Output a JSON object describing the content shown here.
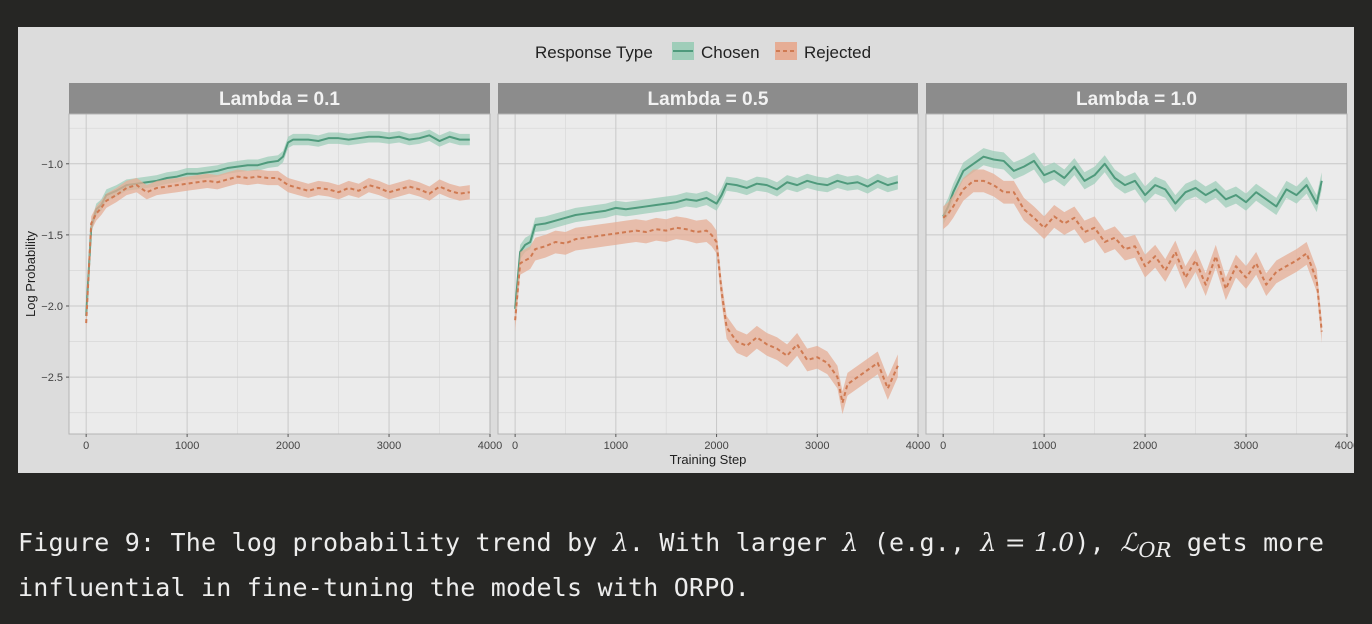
{
  "legend": {
    "title": "Response Type",
    "items": [
      {
        "label": "Chosen",
        "color": "#4f9a7c",
        "fill": "#9fcdb9",
        "dash": "solid"
      },
      {
        "label": "Rejected",
        "color": "#cf7a52",
        "fill": "#e6ad95",
        "dash": "dashed"
      }
    ]
  },
  "caption": {
    "prefix": "Figure 9:",
    "part1": "The log probability trend by",
    "lambda": "λ",
    "part2": ". With larger",
    "part3": "(e.g.,",
    "lambda_eq": "λ = 1.0",
    "part4": "),",
    "loss": "ℒ",
    "loss_sub": "OR",
    "part5": "gets more influential in fine-tuning the models with ORPO."
  },
  "chart_data": {
    "type": "line",
    "xlabel": "Training Step",
    "ylabel": "Log Probability",
    "xlim": [
      -170,
      4000
    ],
    "ylim": [
      -2.9,
      -0.65
    ],
    "xticks": [
      0,
      1000,
      2000,
      3000,
      4000
    ],
    "xtick_labels": [
      "0",
      "1000",
      "2000",
      "3000",
      "4000"
    ],
    "yticks": [
      -1.0,
      -1.5,
      -2.0,
      -2.5
    ],
    "ytick_labels": [
      "−1.0",
      "−1.5",
      "−2.0",
      "−2.5"
    ],
    "grid": true,
    "legend_position": "top",
    "panels": [
      {
        "title": "Lambda = 0.1",
        "series": [
          {
            "name": "Chosen",
            "band": 0.04,
            "x": [
              0,
              50,
              100,
              150,
              200,
              300,
              400,
              500,
              600,
              700,
              800,
              900,
              1000,
              1100,
              1200,
              1300,
              1400,
              1500,
              1600,
              1700,
              1800,
              1900,
              1950,
              2000,
              2050,
              2100,
              2200,
              2300,
              2400,
              2500,
              2600,
              2700,
              2800,
              2900,
              3000,
              3100,
              3200,
              3300,
              3400,
              3500,
              3600,
              3700,
              3800
            ],
            "y": [
              -2.07,
              -1.45,
              -1.32,
              -1.29,
              -1.22,
              -1.19,
              -1.15,
              -1.14,
              -1.13,
              -1.12,
              -1.1,
              -1.09,
              -1.07,
              -1.07,
              -1.06,
              -1.05,
              -1.03,
              -1.02,
              -1.01,
              -1.01,
              -0.99,
              -0.98,
              -0.95,
              -0.85,
              -0.83,
              -0.83,
              -0.83,
              -0.84,
              -0.82,
              -0.82,
              -0.83,
              -0.82,
              -0.81,
              -0.81,
              -0.82,
              -0.81,
              -0.83,
              -0.82,
              -0.8,
              -0.84,
              -0.81,
              -0.83,
              -0.83
            ]
          },
          {
            "name": "Rejected",
            "band": 0.05,
            "x": [
              0,
              50,
              100,
              150,
              200,
              300,
              400,
              500,
              600,
              700,
              800,
              900,
              1000,
              1100,
              1200,
              1300,
              1400,
              1500,
              1600,
              1700,
              1800,
              1900,
              2000,
              2100,
              2200,
              2300,
              2400,
              2500,
              2600,
              2700,
              2800,
              2900,
              3000,
              3100,
              3200,
              3300,
              3400,
              3500,
              3600,
              3700,
              3800
            ],
            "y": [
              -2.12,
              -1.42,
              -1.35,
              -1.31,
              -1.26,
              -1.22,
              -1.17,
              -1.15,
              -1.2,
              -1.17,
              -1.16,
              -1.15,
              -1.14,
              -1.13,
              -1.12,
              -1.13,
              -1.11,
              -1.09,
              -1.1,
              -1.09,
              -1.1,
              -1.1,
              -1.15,
              -1.17,
              -1.19,
              -1.17,
              -1.18,
              -1.2,
              -1.17,
              -1.19,
              -1.15,
              -1.17,
              -1.2,
              -1.18,
              -1.16,
              -1.18,
              -1.21,
              -1.16,
              -1.19,
              -1.21,
              -1.2
            ]
          }
        ]
      },
      {
        "title": "Lambda = 0.5",
        "series": [
          {
            "name": "Chosen",
            "band": 0.05,
            "x": [
              0,
              50,
              100,
              150,
              200,
              300,
              400,
              500,
              600,
              700,
              800,
              900,
              1000,
              1100,
              1200,
              1300,
              1400,
              1500,
              1600,
              1700,
              1800,
              1900,
              2000,
              2050,
              2100,
              2200,
              2300,
              2400,
              2500,
              2600,
              2700,
              2800,
              2900,
              3000,
              3100,
              3200,
              3300,
              3400,
              3500,
              3600,
              3700,
              3800
            ],
            "y": [
              -2.02,
              -1.62,
              -1.57,
              -1.55,
              -1.43,
              -1.42,
              -1.4,
              -1.38,
              -1.36,
              -1.35,
              -1.34,
              -1.33,
              -1.31,
              -1.32,
              -1.31,
              -1.3,
              -1.29,
              -1.28,
              -1.27,
              -1.25,
              -1.26,
              -1.24,
              -1.28,
              -1.22,
              -1.14,
              -1.15,
              -1.17,
              -1.14,
              -1.15,
              -1.18,
              -1.13,
              -1.15,
              -1.12,
              -1.14,
              -1.15,
              -1.12,
              -1.14,
              -1.13,
              -1.16,
              -1.12,
              -1.15,
              -1.13
            ]
          },
          {
            "name": "Rejected",
            "band": 0.08,
            "x": [
              0,
              50,
              100,
              150,
              200,
              300,
              400,
              500,
              600,
              700,
              800,
              900,
              1000,
              1100,
              1200,
              1300,
              1400,
              1500,
              1600,
              1700,
              1800,
              1900,
              1950,
              2000,
              2050,
              2100,
              2150,
              2200,
              2300,
              2400,
              2500,
              2600,
              2700,
              2800,
              2900,
              3000,
              3100,
              3200,
              3250,
              3300,
              3400,
              3500,
              3600,
              3700,
              3800
            ],
            "y": [
              -2.1,
              -1.7,
              -1.68,
              -1.66,
              -1.6,
              -1.58,
              -1.55,
              -1.56,
              -1.53,
              -1.52,
              -1.51,
              -1.5,
              -1.49,
              -1.48,
              -1.47,
              -1.48,
              -1.46,
              -1.47,
              -1.45,
              -1.46,
              -1.48,
              -1.47,
              -1.5,
              -1.55,
              -1.9,
              -2.15,
              -2.2,
              -2.25,
              -2.28,
              -2.22,
              -2.27,
              -2.3,
              -2.35,
              -2.27,
              -2.38,
              -2.36,
              -2.4,
              -2.5,
              -2.68,
              -2.55,
              -2.5,
              -2.45,
              -2.4,
              -2.58,
              -2.42
            ]
          }
        ]
      },
      {
        "title": "Lambda = 1.0",
        "series": [
          {
            "name": "Chosen",
            "band": 0.06,
            "x": [
              0,
              50,
              100,
              200,
              300,
              400,
              500,
              600,
              700,
              800,
              900,
              1000,
              1100,
              1200,
              1300,
              1400,
              1500,
              1600,
              1700,
              1800,
              1900,
              2000,
              2100,
              2200,
              2300,
              2400,
              2500,
              2600,
              2700,
              2800,
              2900,
              3000,
              3100,
              3200,
              3300,
              3400,
              3500,
              3600,
              3700,
              3750
            ],
            "y": [
              -1.37,
              -1.3,
              -1.2,
              -1.05,
              -1.0,
              -0.95,
              -0.97,
              -0.98,
              -1.05,
              -1.02,
              -0.98,
              -1.08,
              -1.05,
              -1.1,
              -1.02,
              -1.12,
              -1.08,
              -1.0,
              -1.1,
              -1.15,
              -1.12,
              -1.22,
              -1.15,
              -1.18,
              -1.28,
              -1.2,
              -1.17,
              -1.22,
              -1.18,
              -1.25,
              -1.22,
              -1.27,
              -1.2,
              -1.25,
              -1.3,
              -1.18,
              -1.22,
              -1.15,
              -1.28,
              -1.12
            ]
          },
          {
            "name": "Rejected",
            "band": 0.08,
            "x": [
              0,
              50,
              100,
              200,
              300,
              400,
              500,
              600,
              700,
              800,
              900,
              1000,
              1100,
              1200,
              1300,
              1400,
              1500,
              1600,
              1700,
              1800,
              1900,
              2000,
              2100,
              2200,
              2300,
              2400,
              2500,
              2600,
              2700,
              2800,
              2900,
              3000,
              3100,
              3200,
              3300,
              3400,
              3500,
              3600,
              3700,
              3750
            ],
            "y": [
              -1.38,
              -1.35,
              -1.3,
              -1.18,
              -1.12,
              -1.12,
              -1.15,
              -1.2,
              -1.2,
              -1.32,
              -1.38,
              -1.45,
              -1.37,
              -1.42,
              -1.38,
              -1.48,
              -1.45,
              -1.55,
              -1.52,
              -1.6,
              -1.58,
              -1.72,
              -1.65,
              -1.75,
              -1.62,
              -1.8,
              -1.68,
              -1.85,
              -1.65,
              -1.88,
              -1.72,
              -1.8,
              -1.7,
              -1.85,
              -1.76,
              -1.72,
              -1.68,
              -1.63,
              -1.82,
              -2.18
            ]
          }
        ]
      }
    ]
  }
}
